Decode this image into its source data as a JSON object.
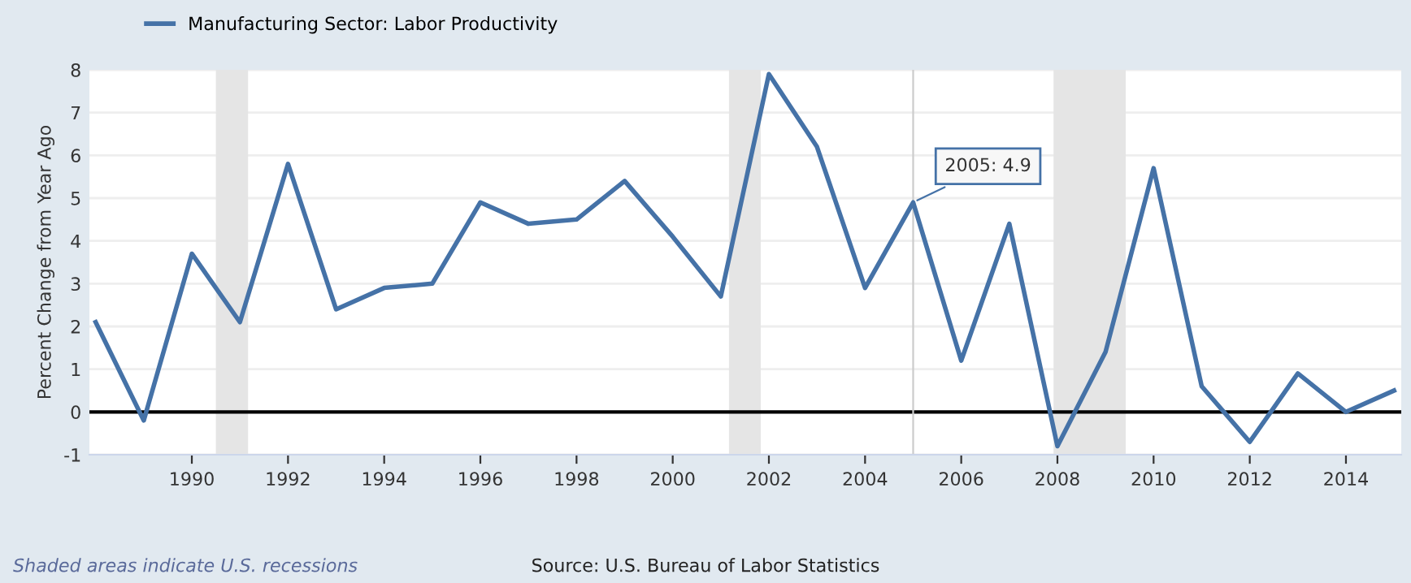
{
  "chart_data": {
    "type": "line",
    "ylabel": "Percent Change from Year Ago",
    "x": [
      1988,
      1989,
      1990,
      1991,
      1992,
      1993,
      1994,
      1995,
      1996,
      1997,
      1998,
      1999,
      2000,
      2001,
      2002,
      2003,
      2004,
      2005,
      2006,
      2007,
      2008,
      2009,
      2010,
      2011,
      2012,
      2013,
      2014,
      2015
    ],
    "series": [
      {
        "name": "Manufacturing Sector: Labor Productivity",
        "color": "#4572a7",
        "values": [
          2.1,
          -0.2,
          3.7,
          2.1,
          5.8,
          2.4,
          2.9,
          3.0,
          4.9,
          4.4,
          4.5,
          5.4,
          4.1,
          2.7,
          7.9,
          6.2,
          2.9,
          4.9,
          1.2,
          4.4,
          -0.8,
          1.4,
          5.7,
          0.6,
          -0.7,
          0.9,
          0.0,
          0.5
        ]
      }
    ],
    "xlim": [
      1987.87,
      2015.15
    ],
    "xticks": [
      1990,
      1992,
      1994,
      1996,
      1998,
      2000,
      2002,
      2004,
      2006,
      2008,
      2010,
      2012,
      2014
    ],
    "ylim": [
      -1,
      8
    ],
    "yticks": [
      -1,
      0,
      1,
      2,
      3,
      4,
      5,
      6,
      7,
      8
    ],
    "grid": "y",
    "legend": "top left",
    "marker": "none",
    "line_style": "solid",
    "bands": [
      {
        "axis": "x",
        "from": 1990.5,
        "to": 1991.17,
        "color": "#e5e5e5"
      },
      {
        "axis": "x",
        "from": 2001.17,
        "to": 2001.83,
        "color": "#e5e5e5"
      },
      {
        "axis": "x",
        "from": 2007.92,
        "to": 2009.42,
        "color": "#e5e5e5"
      }
    ],
    "ref_lines": [
      {
        "axis": "y",
        "value": 0,
        "color": "#000000"
      },
      {
        "axis": "x",
        "value": 2005,
        "color": "#cccccc"
      }
    ],
    "annotations": [
      {
        "text": "2005: 4.9",
        "x": 2005,
        "y": 4.9
      },
      "Shaded areas indicate U.S. recessions",
      "Source: U.S. Bureau of Labor Statistics"
    ]
  }
}
